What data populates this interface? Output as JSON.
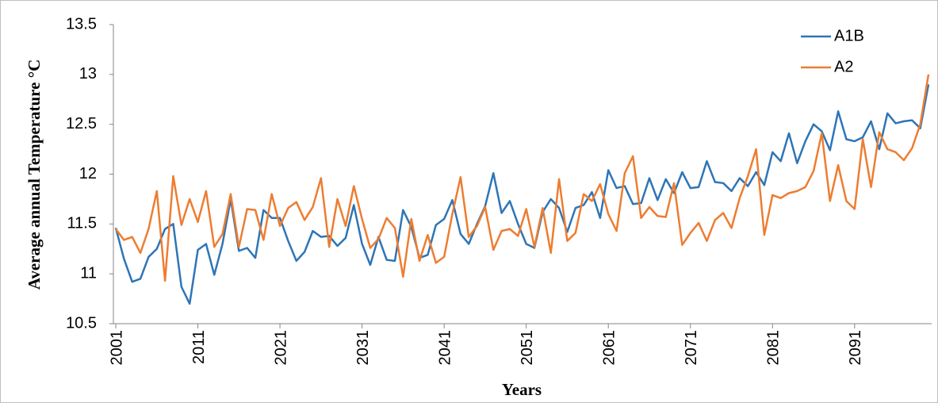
{
  "chart_data": {
    "type": "line",
    "x_label": "Years",
    "y_label": "Average annual Temperature °C",
    "x": [
      2001,
      2002,
      2003,
      2004,
      2005,
      2006,
      2007,
      2008,
      2009,
      2010,
      2011,
      2012,
      2013,
      2014,
      2015,
      2016,
      2017,
      2018,
      2019,
      2020,
      2021,
      2022,
      2023,
      2024,
      2025,
      2026,
      2027,
      2028,
      2029,
      2030,
      2031,
      2032,
      2033,
      2034,
      2035,
      2036,
      2037,
      2038,
      2039,
      2040,
      2041,
      2042,
      2043,
      2044,
      2045,
      2046,
      2047,
      2048,
      2049,
      2050,
      2051,
      2052,
      2053,
      2054,
      2055,
      2056,
      2057,
      2058,
      2059,
      2060,
      2061,
      2062,
      2063,
      2064,
      2065,
      2066,
      2067,
      2068,
      2069,
      2070,
      2071,
      2072,
      2073,
      2074,
      2075,
      2076,
      2077,
      2078,
      2079,
      2080,
      2081,
      2082,
      2083,
      2084,
      2085,
      2086,
      2087,
      2088,
      2089,
      2090,
      2091,
      2092,
      2093,
      2094,
      2095,
      2096,
      2097,
      2098,
      2099,
      2100
    ],
    "series": [
      {
        "name": "A1B",
        "color": "#2e75b6",
        "values": [
          11.46,
          11.15,
          10.92,
          10.95,
          11.17,
          11.25,
          11.45,
          11.5,
          10.87,
          10.7,
          11.24,
          11.3,
          10.99,
          11.3,
          11.75,
          11.23,
          11.26,
          11.16,
          11.64,
          11.56,
          11.56,
          11.33,
          11.13,
          11.22,
          11.43,
          11.37,
          11.38,
          11.28,
          11.36,
          11.69,
          11.3,
          11.09,
          11.37,
          11.14,
          11.13,
          11.64,
          11.47,
          11.16,
          11.19,
          11.49,
          11.55,
          11.74,
          11.4,
          11.3,
          11.5,
          11.68,
          12.01,
          11.61,
          11.73,
          11.5,
          11.3,
          11.26,
          11.62,
          11.75,
          11.66,
          11.42,
          11.66,
          11.69,
          11.82,
          11.56,
          12.04,
          11.86,
          11.88,
          11.7,
          11.71,
          11.96,
          11.74,
          11.95,
          11.81,
          12.02,
          11.86,
          11.87,
          12.13,
          11.92,
          11.91,
          11.83,
          11.96,
          11.88,
          12.02,
          11.89,
          12.22,
          12.13,
          12.41,
          12.11,
          12.33,
          12.5,
          12.43,
          12.24,
          12.63,
          12.35,
          12.33,
          12.37,
          12.53,
          12.25,
          12.61,
          12.51,
          12.53,
          12.54,
          12.46,
          12.9
        ]
      },
      {
        "name": "A2",
        "color": "#ed7d31",
        "values": [
          11.45,
          11.34,
          11.37,
          11.21,
          11.45,
          11.83,
          10.93,
          11.98,
          11.49,
          11.75,
          11.52,
          11.83,
          11.27,
          11.4,
          11.8,
          11.27,
          11.65,
          11.64,
          11.34,
          11.8,
          11.48,
          11.66,
          11.72,
          11.54,
          11.67,
          11.96,
          11.27,
          11.75,
          11.48,
          11.88,
          11.55,
          11.26,
          11.35,
          11.56,
          11.46,
          10.97,
          11.55,
          11.13,
          11.39,
          11.11,
          11.17,
          11.6,
          11.97,
          11.37,
          11.48,
          11.67,
          11.24,
          11.43,
          11.45,
          11.38,
          11.65,
          11.27,
          11.66,
          11.21,
          11.95,
          11.33,
          11.41,
          11.8,
          11.73,
          11.9,
          11.6,
          11.43,
          12.01,
          12.18,
          11.56,
          11.67,
          11.58,
          11.57,
          11.91,
          11.29,
          11.41,
          11.51,
          11.33,
          11.54,
          11.61,
          11.46,
          11.76,
          11.98,
          12.25,
          11.39,
          11.79,
          11.76,
          11.81,
          11.83,
          11.87,
          12.03,
          12.41,
          11.73,
          12.09,
          11.73,
          11.65,
          12.35,
          11.87,
          12.42,
          12.25,
          12.22,
          12.14,
          12.26,
          12.5,
          13.0
        ]
      }
    ],
    "xlim": [
      2001,
      2100
    ],
    "xticks": [
      2001,
      2011,
      2021,
      2031,
      2041,
      2051,
      2061,
      2071,
      2081,
      2091
    ],
    "ylim": [
      10.5,
      13.5
    ],
    "yticks": [
      10.5,
      11,
      11.5,
      12,
      12.5,
      13,
      13.5
    ],
    "grid": false,
    "legend": "upper right"
  }
}
